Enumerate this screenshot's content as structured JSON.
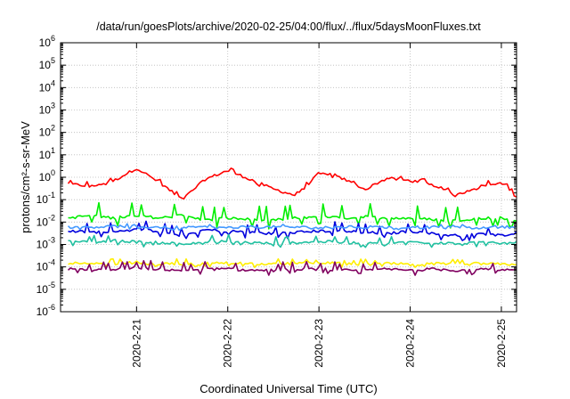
{
  "chart_data": {
    "type": "line",
    "title": "/data/run/goesPlots/archive/2020-02-25/04:00/flux/../flux/5daysMoonFluxes.txt",
    "xlabel": "Coordinated Universal Time (UTC)",
    "ylabel": "protons/cm²-s-sr-MeV",
    "yscale": "log",
    "ylim": [
      1e-06,
      1000000.0
    ],
    "yticks": [
      {
        "base": "10",
        "exp": "-6"
      },
      {
        "base": "10",
        "exp": "-5"
      },
      {
        "base": "10",
        "exp": "-4"
      },
      {
        "base": "10",
        "exp": "-3"
      },
      {
        "base": "10",
        "exp": "-2"
      },
      {
        "base": "10",
        "exp": "-1"
      },
      {
        "base": "10",
        "exp": "0"
      },
      {
        "base": "10",
        "exp": "1"
      },
      {
        "base": "10",
        "exp": "2"
      },
      {
        "base": "10",
        "exp": "3"
      },
      {
        "base": "10",
        "exp": "4"
      },
      {
        "base": "10",
        "exp": "5"
      },
      {
        "base": "10",
        "exp": "6"
      }
    ],
    "xlim": [
      "2020-02-20 04:00",
      "2020-02-25 04:00"
    ],
    "xticks": [
      "2020-2-21",
      "2020-2-22",
      "2020-2-23",
      "2020-2-24",
      "2020-2-25"
    ],
    "grid": true,
    "x": [
      "2020-02-20 06:00",
      "2020-02-20 12:00",
      "2020-02-20 18:00",
      "2020-02-21 00:00",
      "2020-02-21 06:00",
      "2020-02-21 12:00",
      "2020-02-21 18:00",
      "2020-02-22 00:00",
      "2020-02-22 06:00",
      "2020-02-22 12:00",
      "2020-02-22 18:00",
      "2020-02-23 00:00",
      "2020-02-23 06:00",
      "2020-02-23 12:00",
      "2020-02-23 18:00",
      "2020-02-24 00:00",
      "2020-02-24 06:00",
      "2020-02-24 12:00",
      "2020-02-24 18:00",
      "2020-02-25 00:00",
      "2020-02-25 04:00"
    ],
    "series": [
      {
        "color": "#ff0000",
        "values": [
          0.5,
          0.4,
          0.7,
          2.5,
          0.6,
          0.1,
          0.8,
          2.0,
          0.8,
          0.3,
          0.15,
          1.5,
          0.9,
          0.3,
          0.9,
          0.7,
          0.5,
          0.15,
          0.4,
          0.6,
          0.15
        ]
      },
      {
        "color": "#00ee00",
        "values": [
          0.015,
          0.02,
          0.015,
          0.02,
          0.015,
          0.02,
          0.012,
          0.015,
          0.013,
          0.012,
          0.015,
          0.018,
          0.015,
          0.017,
          0.015,
          0.015,
          0.013,
          0.012,
          0.015,
          0.015,
          0.012
        ]
      },
      {
        "color": "#0000dd",
        "values": [
          0.004,
          0.0035,
          0.004,
          0.0045,
          0.004,
          0.0025,
          0.0045,
          0.004,
          0.0035,
          0.003,
          0.0035,
          0.004,
          0.004,
          0.0035,
          0.003,
          0.004,
          0.003,
          0.0025,
          0.003,
          0.0025,
          0.0035
        ]
      },
      {
        "color": "#4499ff",
        "values": [
          0.006,
          0.006,
          0.0065,
          0.006,
          0.006,
          0.0055,
          0.006,
          0.0055,
          0.006,
          0.006,
          0.006,
          0.0055,
          0.006,
          0.006,
          0.006,
          0.0055,
          0.006,
          0.006,
          0.0055,
          0.006,
          0.006
        ]
      },
      {
        "color": "#20c0a0",
        "values": [
          0.0015,
          0.0012,
          0.0015,
          0.0013,
          0.0012,
          0.0011,
          0.0013,
          0.0014,
          0.0012,
          0.0011,
          0.0012,
          0.0014,
          0.0012,
          0.0012,
          0.0011,
          0.0013,
          0.0012,
          0.0011,
          0.0012,
          0.0011,
          0.0012
        ]
      },
      {
        "color": "#ffee00",
        "values": [
          0.00015,
          0.00013,
          0.00014,
          0.00016,
          0.00014,
          0.00013,
          0.00014,
          0.00015,
          0.00014,
          0.00013,
          0.00014,
          0.00015,
          0.00014,
          0.00013,
          0.00014,
          0.00013,
          0.00014,
          0.00013,
          0.00014,
          0.00013,
          0.00013
        ]
      },
      {
        "color": "#800060",
        "values": [
          8e-05,
          7e-05,
          8e-05,
          9e-05,
          8e-05,
          7e-05,
          8e-05,
          8e-05,
          7e-05,
          7e-05,
          8e-05,
          8e-05,
          7e-05,
          7e-05,
          8e-05,
          7e-05,
          8e-05,
          7e-05,
          8e-05,
          7e-05,
          7e-05
        ]
      }
    ]
  }
}
